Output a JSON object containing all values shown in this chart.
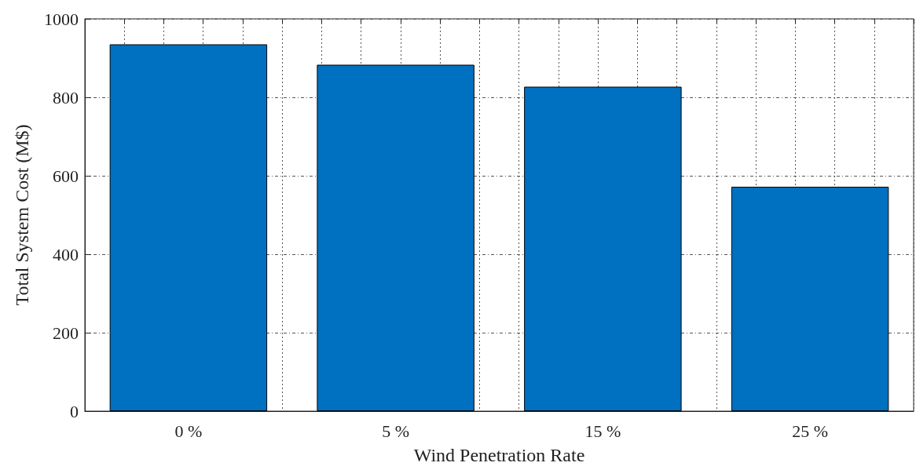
{
  "chart_data": {
    "type": "bar",
    "xlabel": "Wind Penetration Rate",
    "ylabel": "Total System Cost (M$)",
    "categories": [
      "0 %",
      "5 %",
      "15 %",
      "25 %"
    ],
    "values": [
      935,
      883,
      827,
      572
    ],
    "color": "#0070c0",
    "ylim": [
      0,
      1000
    ],
    "yticks": [
      0,
      200,
      400,
      600,
      800,
      1000
    ],
    "grid": true
  }
}
